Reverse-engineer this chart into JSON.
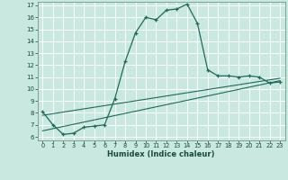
{
  "xlabel": "Humidex (Indice chaleur)",
  "background_color": "#c8e8e0",
  "grid_color": "#ffffff",
  "line_color": "#1a6b5a",
  "xlim": [
    -0.5,
    23.5
  ],
  "ylim": [
    5.7,
    17.3
  ],
  "yticks": [
    6,
    7,
    8,
    9,
    10,
    11,
    12,
    13,
    14,
    15,
    16,
    17
  ],
  "xticks": [
    0,
    1,
    2,
    3,
    4,
    5,
    6,
    7,
    8,
    9,
    10,
    11,
    12,
    13,
    14,
    15,
    16,
    17,
    18,
    19,
    20,
    21,
    22,
    23
  ],
  "curve1_x": [
    0,
    1,
    2,
    3,
    4,
    5,
    6,
    7,
    8,
    9,
    10,
    11,
    12,
    13,
    14,
    15,
    16,
    17,
    18,
    19,
    20,
    21,
    22,
    23
  ],
  "curve1_y": [
    8.1,
    7.0,
    6.2,
    6.3,
    6.8,
    6.9,
    7.0,
    9.2,
    12.3,
    14.7,
    16.0,
    15.8,
    16.6,
    16.7,
    17.1,
    15.5,
    11.6,
    11.1,
    11.1,
    11.0,
    11.1,
    11.0,
    10.5,
    10.6
  ],
  "curve2_x": [
    0,
    23
  ],
  "curve2_y": [
    6.5,
    10.7
  ],
  "curve3_x": [
    0,
    23
  ],
  "curve3_y": [
    7.8,
    10.9
  ]
}
